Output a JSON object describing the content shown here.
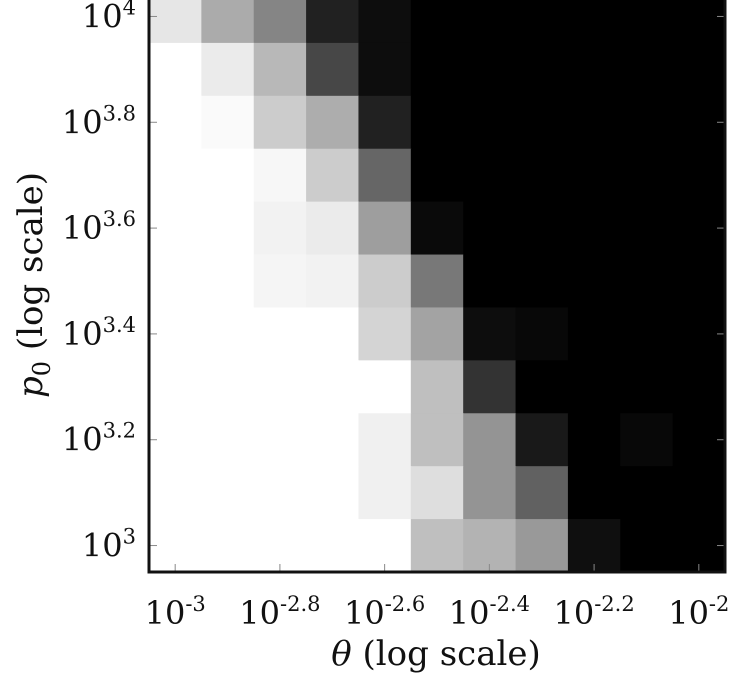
{
  "chart_data": {
    "type": "heatmap",
    "colormap": "greyscale (white = low, black = high)",
    "xlabel": {
      "symbol": "θ",
      "text": " (log scale)"
    },
    "ylabel": {
      "symbol": "p",
      "subscript": "0",
      "text": " (log scale)"
    },
    "x_log10_range": [
      -3.05,
      -1.95
    ],
    "y_log10_range": [
      2.95,
      4.05
    ],
    "x_ticks": [
      {
        "base": "10",
        "exp": "-3",
        "log10": -3.0
      },
      {
        "base": "10",
        "exp": "-2.8",
        "log10": -2.8
      },
      {
        "base": "10",
        "exp": "-2.6",
        "log10": -2.6
      },
      {
        "base": "10",
        "exp": "-2.4",
        "log10": -2.4
      },
      {
        "base": "10",
        "exp": "-2.2",
        "log10": -2.2
      },
      {
        "base": "10",
        "exp": "-2",
        "log10": -2.0
      }
    ],
    "y_ticks": [
      {
        "base": "10",
        "exp": "3",
        "log10": 3.0
      },
      {
        "base": "10",
        "exp": "3.2",
        "log10": 3.2
      },
      {
        "base": "10",
        "exp": "3.4",
        "log10": 3.4
      },
      {
        "base": "10",
        "exp": "3.6",
        "log10": 3.6
      },
      {
        "base": "10",
        "exp": "3.8",
        "log10": 3.8
      },
      {
        "base": "10",
        "exp": "4",
        "log10": 4.0
      }
    ],
    "x_cells_log10": [
      -3.0,
      -2.9,
      -2.8,
      -2.7,
      -2.6,
      -2.5,
      -2.4,
      -2.3,
      -2.2,
      -2.1,
      -2.0
    ],
    "y_cells_log10": [
      4.0,
      3.9,
      3.8,
      3.7,
      3.6,
      3.5,
      3.4,
      3.3,
      3.2,
      3.1,
      3.0
    ],
    "values": [
      [
        0.1,
        0.33,
        0.48,
        0.87,
        0.95,
        1.0,
        1.0,
        1.0,
        1.0,
        1.0,
        1.0
      ],
      [
        0.0,
        0.08,
        0.28,
        0.72,
        0.95,
        1.0,
        1.0,
        1.0,
        1.0,
        1.0,
        1.0
      ],
      [
        0.0,
        0.02,
        0.2,
        0.32,
        0.87,
        1.0,
        1.0,
        1.0,
        1.0,
        1.0,
        1.0
      ],
      [
        0.0,
        0.0,
        0.03,
        0.2,
        0.6,
        1.0,
        1.0,
        1.0,
        1.0,
        1.0,
        1.0
      ],
      [
        0.0,
        0.0,
        0.05,
        0.08,
        0.38,
        0.96,
        1.0,
        1.0,
        1.0,
        1.0,
        1.0
      ],
      [
        0.0,
        0.0,
        0.04,
        0.05,
        0.2,
        0.53,
        1.0,
        1.0,
        1.0,
        1.0,
        1.0
      ],
      [
        0.0,
        0.0,
        0.0,
        0.0,
        0.17,
        0.36,
        0.95,
        0.97,
        1.0,
        1.0,
        1.0
      ],
      [
        0.0,
        0.0,
        0.0,
        0.0,
        0.0,
        0.25,
        0.8,
        1.0,
        1.0,
        1.0,
        1.0
      ],
      [
        0.0,
        0.0,
        0.0,
        0.0,
        0.06,
        0.25,
        0.42,
        0.9,
        1.0,
        0.97,
        1.0
      ],
      [
        0.0,
        0.0,
        0.0,
        0.0,
        0.06,
        0.13,
        0.42,
        0.62,
        1.0,
        1.0,
        1.0
      ],
      [
        0.0,
        0.0,
        0.0,
        0.0,
        0.0,
        0.25,
        0.3,
        0.4,
        0.94,
        1.0,
        1.0
      ]
    ]
  }
}
